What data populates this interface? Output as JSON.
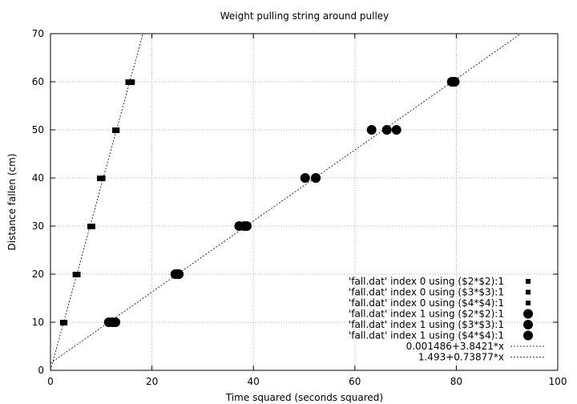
{
  "chart_data": {
    "type": "scatter",
    "title": "Weight pulling string around pulley",
    "xlabel": "Time squared (seconds squared)",
    "ylabel": "Distance fallen (cm)",
    "xlim": [
      0,
      100
    ],
    "ylim": [
      0,
      70
    ],
    "xticks": [
      "0",
      "20",
      "40",
      "60",
      "80",
      "100"
    ],
    "yticks": [
      "0",
      "10",
      "20",
      "30",
      "40",
      "50",
      "60",
      "70"
    ],
    "grid": true,
    "legend_position": "bottom-right",
    "series": [
      {
        "name": "'fall.dat' index 0 using ($2*$2):1",
        "marker": "square",
        "points": [
          [
            2.5,
            10
          ],
          [
            5.1,
            20
          ],
          [
            7.9,
            30
          ],
          [
            10.0,
            40
          ],
          [
            12.8,
            50
          ],
          [
            15.4,
            60
          ]
        ]
      },
      {
        "name": "'fall.dat' index 0 using ($3*$3):1",
        "marker": "square",
        "points": [
          [
            2.6,
            10
          ],
          [
            5.0,
            20
          ],
          [
            8.2,
            30
          ],
          [
            9.8,
            40
          ],
          [
            13.0,
            50
          ],
          [
            15.9,
            60
          ]
        ]
      },
      {
        "name": "'fall.dat' index 0 using ($4*$4):1",
        "marker": "square",
        "points": [
          [
            2.7,
            10
          ],
          [
            5.3,
            20
          ],
          [
            8.0,
            30
          ],
          [
            10.2,
            40
          ],
          [
            12.9,
            50
          ],
          [
            16.0,
            60
          ]
        ]
      },
      {
        "name": "'fall.dat' index 1 using ($2*$2):1",
        "marker": "circle",
        "points": [
          [
            11.5,
            10
          ],
          [
            24.6,
            20
          ],
          [
            37.2,
            30
          ],
          [
            50.2,
            40
          ],
          [
            63.3,
            50
          ],
          [
            79.1,
            60
          ]
        ]
      },
      {
        "name": "'fall.dat' index 1 using ($3*$3):1",
        "marker": "circle",
        "points": [
          [
            12.2,
            10
          ],
          [
            25.0,
            20
          ],
          [
            38.2,
            30
          ],
          [
            52.3,
            40
          ],
          [
            66.3,
            50
          ],
          [
            79.6,
            60
          ]
        ]
      },
      {
        "name": "'fall.dat' index 1 using ($4*$4):1",
        "marker": "circle",
        "points": [
          [
            12.8,
            10
          ],
          [
            25.3,
            20
          ],
          [
            38.7,
            30
          ],
          [
            52.3,
            40
          ],
          [
            68.2,
            50
          ],
          [
            79.7,
            60
          ]
        ]
      }
    ],
    "fits": [
      {
        "name": "0.001486+3.8421*x",
        "intercept": 0.001486,
        "slope": 3.8421
      },
      {
        "name": "1.493+0.73877*x",
        "intercept": 1.493,
        "slope": 0.73877
      }
    ]
  }
}
